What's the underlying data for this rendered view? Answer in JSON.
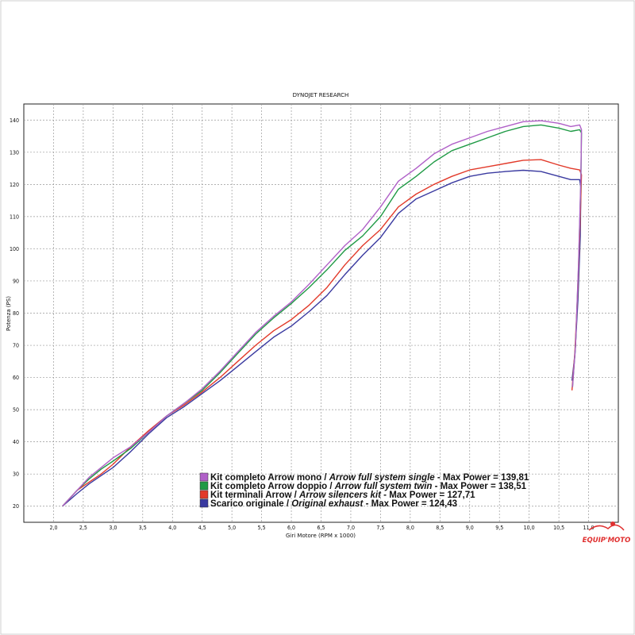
{
  "chart_data": {
    "type": "line",
    "title": "DYNOJET RESEARCH",
    "xlabel": "Giri Motore (RPM x 1000)",
    "ylabel": "Potenza (PS)",
    "xlim": [
      1.5,
      11.5
    ],
    "ylim": [
      15,
      145
    ],
    "xticks": [
      "2,0",
      "2,5",
      "3,0",
      "3,5",
      "4,0",
      "4,5",
      "5,0",
      "5,5",
      "6,0",
      "6,5",
      "7,0",
      "7,5",
      "8,0",
      "8,5",
      "9,0",
      "9,5",
      "10,0",
      "10,5",
      "11,0"
    ],
    "yticks": [
      "20",
      "30",
      "40",
      "50",
      "60",
      "70",
      "80",
      "90",
      "100",
      "110",
      "120",
      "130",
      "140"
    ],
    "grid": true,
    "legend_position": "bottom-center",
    "series": [
      {
        "name": "Kit completo Arrow mono",
        "name_en": "Arrow full system single",
        "max_label": "Max Power = 139,81",
        "color": "#b060c8",
        "x": [
          2.15,
          2.4,
          2.6,
          2.8,
          3.0,
          3.3,
          3.6,
          3.9,
          4.2,
          4.5,
          4.8,
          5.1,
          5.4,
          5.7,
          6.0,
          6.3,
          6.6,
          6.9,
          7.2,
          7.5,
          7.8,
          8.1,
          8.4,
          8.7,
          9.0,
          9.3,
          9.6,
          9.9,
          10.2,
          10.5,
          10.7,
          10.85,
          10.88,
          10.87,
          10.83,
          10.78,
          10.73
        ],
        "y": [
          20,
          25,
          29,
          32,
          35,
          38.5,
          43,
          48,
          52,
          56.5,
          62,
          68,
          74,
          79,
          83.5,
          89,
          95,
          101,
          106,
          113,
          121,
          125,
          129.5,
          132.5,
          134.5,
          136.5,
          138,
          139.5,
          139.8,
          139,
          138,
          138.5,
          137,
          122,
          95,
          70,
          57
        ]
      },
      {
        "name": "Kit completo Arrow doppio",
        "name_en": "Arrow full system twin",
        "max_label": "Max Power = 138,51",
        "color": "#1f9a45",
        "x": [
          2.15,
          2.4,
          2.6,
          2.8,
          3.0,
          3.3,
          3.6,
          3.9,
          4.2,
          4.5,
          4.8,
          5.1,
          5.4,
          5.7,
          6.0,
          6.3,
          6.6,
          6.9,
          7.2,
          7.5,
          7.8,
          8.1,
          8.4,
          8.7,
          9.0,
          9.3,
          9.6,
          9.9,
          10.2,
          10.5,
          10.7,
          10.85,
          10.88,
          10.87,
          10.83,
          10.78,
          10.73
        ],
        "y": [
          20,
          25,
          28.5,
          31.5,
          34,
          38,
          43,
          48,
          52,
          56,
          61.5,
          67.5,
          73.5,
          78.5,
          83,
          88,
          93.5,
          99.5,
          104,
          110,
          118.5,
          122.5,
          127,
          130.5,
          132.5,
          134.5,
          136.5,
          138,
          138.5,
          137.5,
          136.5,
          137,
          136,
          121,
          94,
          70,
          57
        ]
      },
      {
        "name": "Kit terminali Arrow",
        "name_en": "Arrow silencers kit",
        "max_label": "Max Power = 127,71",
        "color": "#e23a2a",
        "x": [
          2.15,
          2.4,
          2.6,
          2.8,
          3.0,
          3.3,
          3.6,
          3.9,
          4.2,
          4.5,
          4.8,
          5.1,
          5.4,
          5.7,
          6.0,
          6.3,
          6.6,
          6.9,
          7.2,
          7.5,
          7.8,
          8.1,
          8.4,
          8.7,
          9.0,
          9.3,
          9.6,
          9.9,
          10.2,
          10.5,
          10.7,
          10.85,
          10.88,
          10.86,
          10.82,
          10.77,
          10.72
        ],
        "y": [
          20,
          25,
          27.5,
          30,
          33,
          38.5,
          43.5,
          48,
          51.5,
          55.5,
          60,
          65,
          70,
          74.5,
          78,
          82.5,
          88,
          95,
          101,
          106,
          113,
          117,
          120,
          122.5,
          124.5,
          125.5,
          126.5,
          127.5,
          127.7,
          126,
          125,
          124.5,
          123,
          110,
          88,
          68,
          56
        ]
      },
      {
        "name": "Scarico originale",
        "name_en": "Original exhaust",
        "max_label": "Max Power = 124,43",
        "color": "#3a3aa0",
        "x": [
          2.15,
          2.4,
          2.6,
          2.8,
          3.0,
          3.3,
          3.6,
          3.9,
          4.2,
          4.5,
          4.8,
          5.1,
          5.4,
          5.7,
          6.0,
          6.3,
          6.6,
          6.9,
          7.2,
          7.5,
          7.8,
          8.1,
          8.4,
          8.7,
          9.0,
          9.3,
          9.6,
          9.9,
          10.2,
          10.5,
          10.7,
          10.85,
          10.87,
          10.86,
          10.82,
          10.77,
          10.72
        ],
        "y": [
          20,
          24,
          27,
          29.5,
          32,
          37,
          42.5,
          47.5,
          51,
          55,
          59,
          63.5,
          68,
          72.5,
          76,
          80.5,
          85.5,
          92,
          98,
          103.5,
          111,
          115.5,
          118,
          120.5,
          122.5,
          123.5,
          124,
          124.4,
          124,
          122.5,
          121.5,
          121.5,
          119,
          104,
          84,
          67,
          59
        ]
      }
    ]
  },
  "watermark": "EQUIP'MOTO",
  "colors": {
    "page_frame": "#cfcfcf",
    "plot_frame": "#222222",
    "grid": "#999999"
  }
}
